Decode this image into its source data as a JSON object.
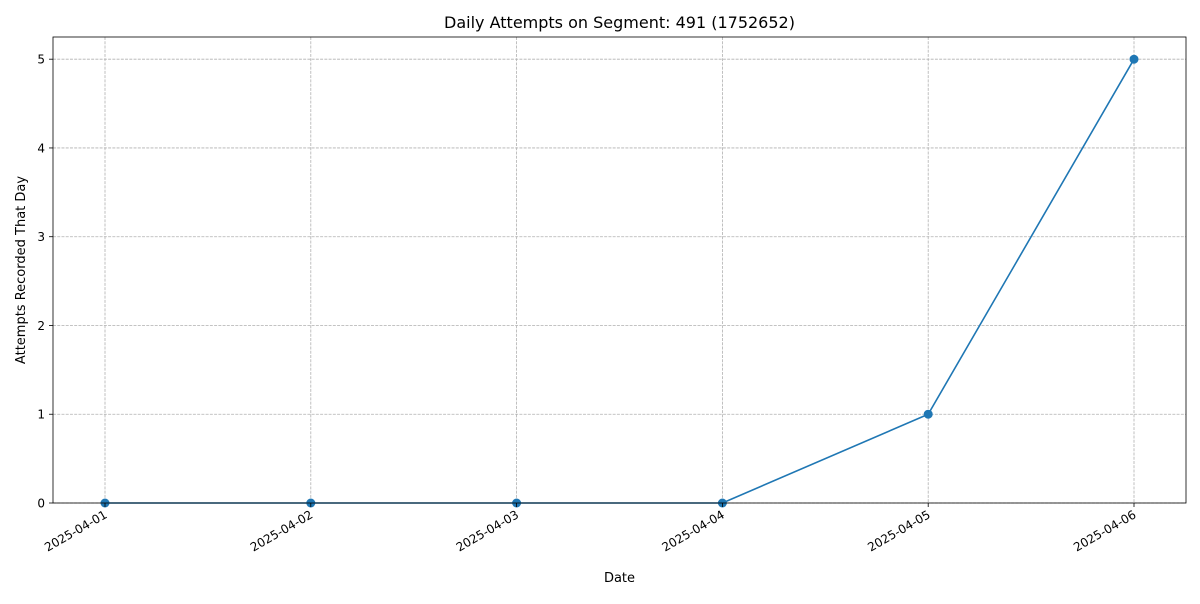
{
  "chart_data": {
    "type": "line",
    "title": "Daily Attempts on Segment: 491 (1752652)",
    "xlabel": "Date",
    "ylabel": "Attempts Recorded That Day",
    "categories": [
      "2025-04-01",
      "2025-04-02",
      "2025-04-03",
      "2025-04-04",
      "2025-04-05",
      "2025-04-06"
    ],
    "series": [
      {
        "values": [
          0,
          0,
          0,
          0,
          1,
          5
        ],
        "color": "#1f77b4",
        "marker": "circle"
      }
    ],
    "ylim": [
      0,
      5.25
    ],
    "yticks": [
      "0",
      "1",
      "2",
      "3",
      "4",
      "5"
    ],
    "grid": true,
    "legend": "none"
  }
}
